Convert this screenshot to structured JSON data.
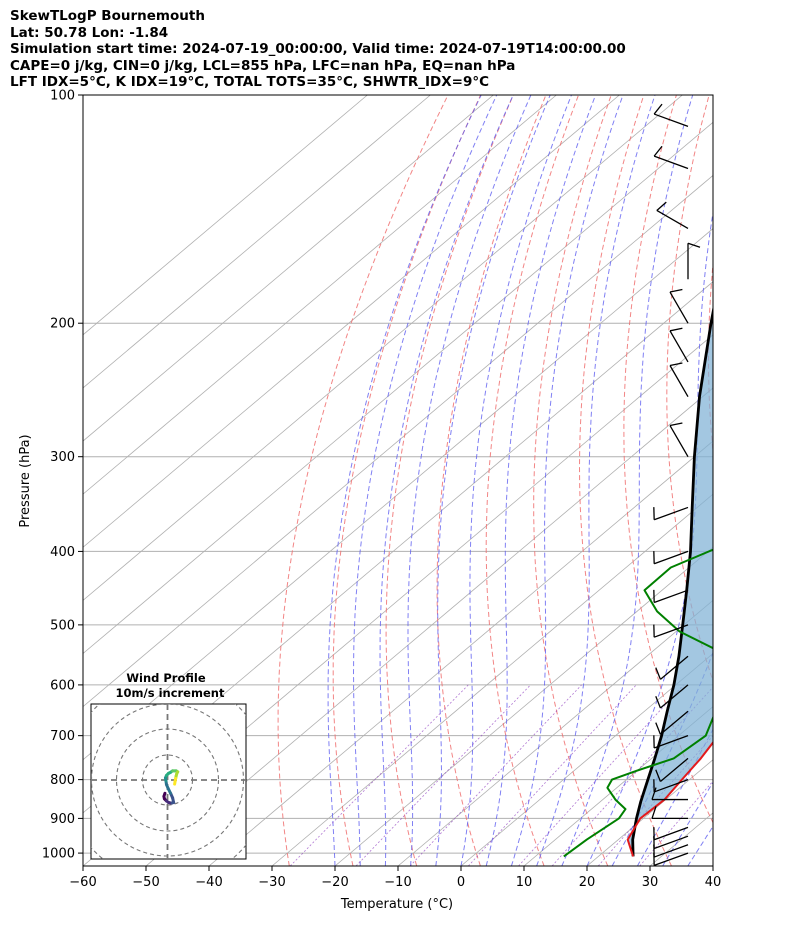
{
  "header": {
    "title": "SkewTLogP Bournemouth",
    "location": "Lat: 50.78   Lon: -1.84",
    "times": "Simulation start time: 2024-07-19_00:00:00, Valid time: 2024-07-19T14:00:00.00",
    "indices1": "CAPE=0 j/kg, CIN=0 j/kg, LCL=855 hPa, LFC=nan hPa, EQ=nan hPa",
    "indices2": "LFT IDX=5°C, K IDX=19°C, TOTAL TOTS=35°C, SHWTR_IDX=9°C"
  },
  "axes": {
    "xlabel": "Temperature (°C)",
    "ylabel": "Pressure (hPa)",
    "x_ticks": [
      "−60",
      "−50",
      "−40",
      "−30",
      "−20",
      "−10",
      "0",
      "10",
      "20",
      "30",
      "40"
    ],
    "y_ticks": [
      "100",
      "200",
      "300",
      "400",
      "500",
      "600",
      "700",
      "800",
      "900",
      "1000"
    ]
  },
  "inset": {
    "title": "Wind Profile",
    "subtitle": "10m/s increment"
  },
  "colors": {
    "temperature": "#e31a1c",
    "dewpoint": "#008000",
    "parcel": "#000000",
    "cape_fill": "#7fb2d5",
    "dry_adiabat": "#f07070",
    "moist_adiabat": "#6060f0",
    "mixing_ratio": "#9040c0",
    "isotherm": "#b0b0b0"
  },
  "chart_data": {
    "type": "skew-t",
    "xlim": [
      -60,
      40
    ],
    "ylim": [
      1040,
      100
    ],
    "y_scale": "log",
    "temperature": {
      "pressure": [
        1010,
        960,
        900,
        850,
        800,
        750,
        700,
        650,
        600,
        550,
        500,
        450,
        400,
        350,
        300,
        250,
        210,
        200,
        185,
        170,
        155,
        140,
        125,
        110,
        100
      ],
      "temp_c": [
        25.5,
        21.5,
        19.5,
        19.8,
        18.8,
        17.8,
        16.3,
        13.8,
        11.6,
        8.2,
        4.8,
        0.8,
        -4.8,
        -11.2,
        -18.7,
        -29.5,
        -37.8,
        -40.9,
        -46.2,
        -50.2,
        -54.8,
        -56.8,
        -57.2,
        -60.5,
        -64.5
      ]
    },
    "dewpoint": {
      "pressure": [
        1010,
        960,
        900,
        875,
        850,
        820,
        800,
        780,
        750,
        700,
        650,
        600,
        550,
        510,
        480,
        450,
        420,
        390,
        355,
        330,
        300,
        280,
        265,
        250,
        235,
        220,
        200,
        185,
        165,
        150,
        135,
        100
      ],
      "dewpoint_c": [
        14.5,
        15.0,
        16.1,
        15.4,
        12.0,
        8.5,
        7.7,
        9.8,
        13.5,
        14.3,
        11.3,
        6.9,
        3.1,
        -9.5,
        -16.8,
        -22.8,
        -22.9,
        -18.3,
        -19.8,
        -26.0,
        -34.2,
        -36.5,
        -39.1,
        -38.7,
        -43.8,
        -48.2,
        -53.0,
        -52.0,
        -50.1,
        -57.5,
        -66.5,
        -69.5
      ]
    },
    "parcel": {
      "pressure": [
        1010,
        960,
        900,
        855,
        800,
        750,
        700,
        650,
        600,
        550,
        500,
        450,
        400,
        350,
        300,
        250,
        200,
        150,
        120,
        100
      ],
      "temp_c": [
        25.5,
        22.3,
        18.9,
        16.4,
        13.4,
        10.5,
        7.3,
        3.6,
        -0.3,
        -4.9,
        -10.2,
        -16.1,
        -22.8,
        -30.8,
        -40.0,
        -50.5,
        -62.5,
        -77.5,
        -88.5,
        -98
      ]
    },
    "wind_barbs": {
      "pressure": [
        1000,
        975,
        950,
        925,
        900,
        850,
        800,
        750,
        700,
        650,
        600,
        550,
        500,
        450,
        400,
        350,
        300,
        250,
        225,
        200,
        175,
        150,
        125,
        110
      ],
      "speed_kt": [
        10,
        10,
        10,
        10,
        10,
        10,
        10,
        10,
        10,
        10,
        10,
        10,
        10,
        10,
        10,
        10,
        10,
        10,
        10,
        10,
        10,
        10,
        10,
        10
      ],
      "direction_deg": [
        250,
        250,
        250,
        250,
        270,
        270,
        250,
        230,
        250,
        230,
        230,
        230,
        250,
        250,
        250,
        250,
        330,
        330,
        330,
        330,
        360,
        300,
        290,
        290
      ]
    },
    "wind_profile": {
      "u": [
        1.4,
        1.5,
        1.6,
        1.7,
        1.8,
        2.0,
        1.7,
        1.3,
        1.0,
        0.6,
        0.2,
        -0.2,
        -0.4,
        -0.3,
        -0.2,
        0.1,
        0.6,
        1.0,
        1.2,
        0.9,
        0.6,
        0.2,
        -0.2,
        -0.6,
        -0.7,
        -0.5
      ],
      "v": [
        -0.8,
        -0.2,
        0.3,
        0.8,
        1.2,
        1.6,
        1.8,
        1.8,
        1.8,
        1.5,
        1.3,
        0.9,
        0.4,
        -0.2,
        -0.9,
        -1.6,
        -2.6,
        -3.5,
        -4.4,
        -4.5,
        -4.5,
        -4.4,
        -4.1,
        -3.7,
        -3.2,
        -2.6
      ]
    }
  }
}
